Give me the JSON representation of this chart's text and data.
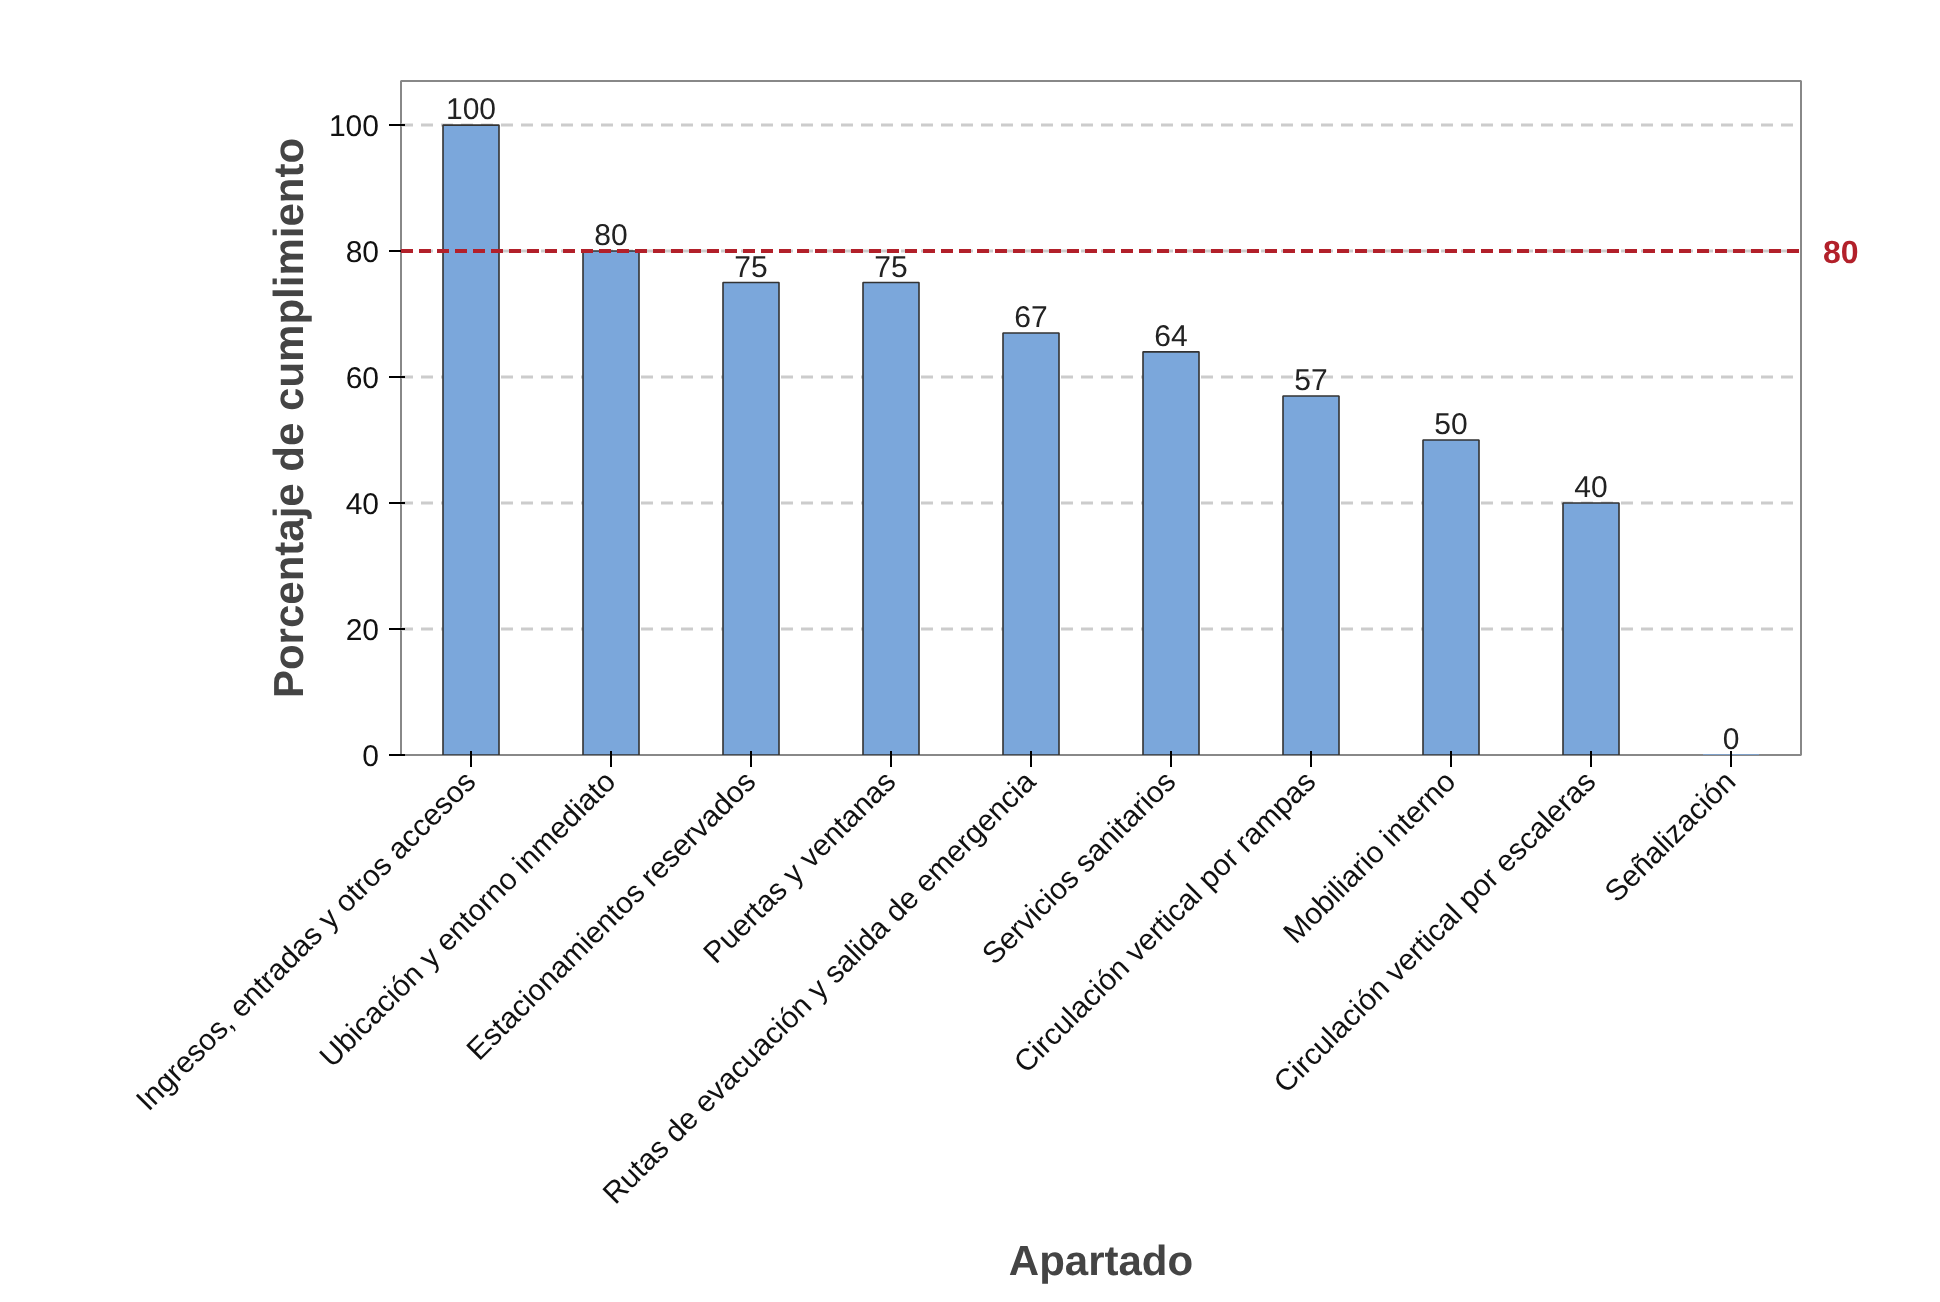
{
  "chart_data": {
    "type": "bar",
    "xlabel": "Apartado",
    "ylabel": "Porcentaje de cumplimiento",
    "categories": [
      "Ingresos, entradas y otros accesos",
      "Ubicación y entorno inmediato",
      "Estacionamientos reservados",
      "Puertas y ventanas",
      "Rutas de evacuación y salida de emergencia",
      "Servicios sanitarios",
      "Circulación vertical por rampas",
      "Mobiliario interno",
      "Circulación vertical por escaleras",
      "Señalización"
    ],
    "values": [
      100,
      80,
      75,
      75,
      67,
      64,
      57,
      50,
      40,
      0
    ],
    "color": "#7ba7db",
    "ylim": [
      0,
      107
    ],
    "yticks": [
      0,
      20,
      40,
      60,
      80,
      100
    ],
    "grid": "y",
    "data_labels": true,
    "ref_lines": [
      {
        "axis": "y",
        "value": 80,
        "label": "80",
        "color": "#b2202a",
        "line_style": "dashed"
      }
    ]
  }
}
